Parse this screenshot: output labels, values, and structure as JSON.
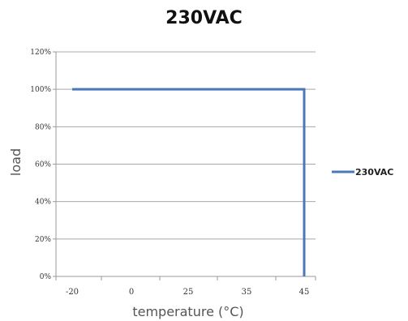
{
  "chart_data": {
    "type": "line",
    "title": "230VAC",
    "xlabel": "temperature (°C)",
    "ylabel": "load",
    "x_ticks": [
      "-20",
      "0",
      "25",
      "35",
      "45"
    ],
    "y_ticks": [
      "0%",
      "20%",
      "40%",
      "60%",
      "80%",
      "100%",
      "120%"
    ],
    "ylim": [
      0,
      120
    ],
    "grid": "horizontal",
    "legend_position": "right",
    "series": [
      {
        "name": "230VAC",
        "color": "#4a78b8",
        "points": [
          {
            "x_tick_pos": -20,
            "y": 100
          },
          {
            "x_tick_pos": 45,
            "y": 100
          },
          {
            "x_tick_pos": 45,
            "y": 0
          }
        ]
      }
    ]
  }
}
